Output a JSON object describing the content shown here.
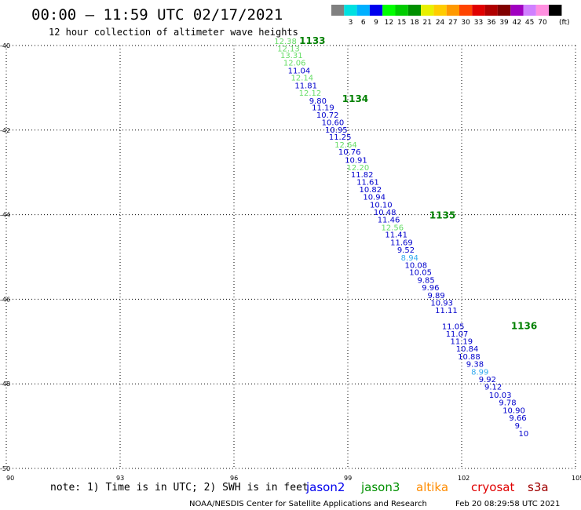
{
  "header": {
    "title": "00:00 – 11:59 UTC 02/17/2021",
    "subtitle": "12 hour collection of altimeter wave heights"
  },
  "legend": {
    "unit_label": "(ft)",
    "bins": [
      {
        "label": "",
        "color": "#808080"
      },
      {
        "label": "3",
        "color": "#00e0e0"
      },
      {
        "label": "6",
        "color": "#00b0ff"
      },
      {
        "label": "9",
        "color": "#0000ee"
      },
      {
        "label": "12",
        "color": "#00ff00"
      },
      {
        "label": "15",
        "color": "#00cc00"
      },
      {
        "label": "18",
        "color": "#009000"
      },
      {
        "label": "21",
        "color": "#e8f000"
      },
      {
        "label": "24",
        "color": "#ffcc00"
      },
      {
        "label": "27",
        "color": "#ff9900"
      },
      {
        "label": "30",
        "color": "#ff4400"
      },
      {
        "label": "33",
        "color": "#e00000"
      },
      {
        "label": "36",
        "color": "#b00000"
      },
      {
        "label": "39",
        "color": "#800000"
      },
      {
        "label": "42",
        "color": "#a000c0"
      },
      {
        "label": "45",
        "color": "#d080ff"
      },
      {
        "label": "70",
        "color": "#ff90e0"
      },
      {
        "label": "",
        "color": "#000000"
      }
    ]
  },
  "footer": {
    "note": "note: 1) Time is in UTC; 2) SWH is in feet",
    "satellites": [
      {
        "name": "jason2",
        "color": "#0000ee"
      },
      {
        "name": "jason3",
        "color": "#009000"
      },
      {
        "name": "altika",
        "color": "#ff8c00"
      },
      {
        "name": "cryosat",
        "color": "#e00000"
      },
      {
        "name": "s3a",
        "color": "#a00000"
      }
    ],
    "credit": "NOAA/NESDIS Center for Satellite Applications and Research",
    "timestamp": "Feb 20 08:29:58 UTC 2021"
  },
  "chart_data": {
    "type": "scatter",
    "x_ticks": [
      "90",
      "93",
      "96",
      "99",
      "102",
      "105"
    ],
    "y_ticks": [
      "-40",
      "-42",
      "-44",
      "-46",
      "-48",
      "-50"
    ],
    "xlim": [
      90,
      105
    ],
    "ylim": [
      -50,
      -40
    ],
    "grid": true,
    "colors": {
      "light": "#66dd66",
      "dark": "#0000cc",
      "cyan": "#33aaee",
      "orbit": "#008000"
    },
    "orbit_labels": [
      {
        "text": "1133",
        "x": 97.72,
        "y": -39.96
      },
      {
        "text": "1134",
        "x": 98.85,
        "y": -41.34
      },
      {
        "text": "1135",
        "x": 101.15,
        "y": -44.09
      },
      {
        "text": "1136",
        "x": 103.3,
        "y": -46.71
      }
    ],
    "points": [
      {
        "v": "12.38",
        "c": "light",
        "x": 97.06,
        "y": -39.96
      },
      {
        "v": "12.13",
        "c": "light",
        "x": 97.14,
        "y": -40.14
      },
      {
        "v": "13.31",
        "c": "light",
        "x": 97.22,
        "y": -40.3
      },
      {
        "v": "12.06",
        "c": "light",
        "x": 97.3,
        "y": -40.47
      },
      {
        "v": "11.04",
        "c": "dark",
        "x": 97.42,
        "y": -40.66
      },
      {
        "v": "12.14",
        "c": "light",
        "x": 97.5,
        "y": -40.83
      },
      {
        "v": "11.81",
        "c": "dark",
        "x": 97.6,
        "y": -41.01
      },
      {
        "v": "12.12",
        "c": "light",
        "x": 97.71,
        "y": -41.19
      },
      {
        "v": "9.80",
        "c": "dark",
        "x": 97.98,
        "y": -41.37
      },
      {
        "v": "11.19",
        "c": "dark",
        "x": 98.05,
        "y": -41.53
      },
      {
        "v": "10.72",
        "c": "dark",
        "x": 98.17,
        "y": -41.71
      },
      {
        "v": "10.60",
        "c": "dark",
        "x": 98.31,
        "y": -41.88
      },
      {
        "v": "10.95",
        "c": "dark",
        "x": 98.4,
        "y": -42.06
      },
      {
        "v": "11.25",
        "c": "dark",
        "x": 98.5,
        "y": -42.23
      },
      {
        "v": "12.64",
        "c": "light",
        "x": 98.65,
        "y": -42.41
      },
      {
        "v": "10.76",
        "c": "dark",
        "x": 98.75,
        "y": -42.58
      },
      {
        "v": "10.91",
        "c": "dark",
        "x": 98.92,
        "y": -42.77
      },
      {
        "v": "12.20",
        "c": "light",
        "x": 98.97,
        "y": -42.95
      },
      {
        "v": "11.82",
        "c": "dark",
        "x": 99.08,
        "y": -43.12
      },
      {
        "v": "11.61",
        "c": "dark",
        "x": 99.23,
        "y": -43.29
      },
      {
        "v": "10.82",
        "c": "dark",
        "x": 99.3,
        "y": -43.47
      },
      {
        "v": "10.94",
        "c": "dark",
        "x": 99.4,
        "y": -43.65
      },
      {
        "v": "10.10",
        "c": "dark",
        "x": 99.58,
        "y": -43.83
      },
      {
        "v": "10.48",
        "c": "dark",
        "x": 99.68,
        "y": -44.01
      },
      {
        "v": "11.46",
        "c": "dark",
        "x": 99.78,
        "y": -44.18
      },
      {
        "v": "12.56",
        "c": "light",
        "x": 99.88,
        "y": -44.37
      },
      {
        "v": "11.41",
        "c": "dark",
        "x": 99.98,
        "y": -44.54
      },
      {
        "v": "11.69",
        "c": "dark",
        "x": 100.12,
        "y": -44.72
      },
      {
        "v": "9.52",
        "c": "dark",
        "x": 100.3,
        "y": -44.9
      },
      {
        "v": "8.94",
        "c": "cyan",
        "x": 100.4,
        "y": -45.08
      },
      {
        "v": "10.08",
        "c": "dark",
        "x": 100.5,
        "y": -45.26
      },
      {
        "v": "10.05",
        "c": "dark",
        "x": 100.62,
        "y": -45.43
      },
      {
        "v": "9.85",
        "c": "dark",
        "x": 100.83,
        "y": -45.61
      },
      {
        "v": "9.96",
        "c": "dark",
        "x": 100.95,
        "y": -45.79
      },
      {
        "v": "9.89",
        "c": "dark",
        "x": 101.1,
        "y": -45.97
      },
      {
        "v": "10.93",
        "c": "dark",
        "x": 101.18,
        "y": -46.15
      },
      {
        "v": "11.11",
        "c": "dark",
        "x": 101.3,
        "y": -46.33
      },
      {
        "v": "11.05",
        "c": "dark",
        "x": 101.48,
        "y": -46.71
      },
      {
        "v": "11.07",
        "c": "dark",
        "x": 101.58,
        "y": -46.88
      },
      {
        "v": "11.19",
        "c": "dark",
        "x": 101.7,
        "y": -47.06
      },
      {
        "v": "10.84",
        "c": "dark",
        "x": 101.85,
        "y": -47.24
      },
      {
        "v": "10.88",
        "c": "dark",
        "x": 101.9,
        "y": -47.42
      },
      {
        "v": "9.38",
        "c": "dark",
        "x": 102.12,
        "y": -47.6
      },
      {
        "v": "8.99",
        "c": "cyan",
        "x": 102.25,
        "y": -47.78
      },
      {
        "v": "9.92",
        "c": "dark",
        "x": 102.45,
        "y": -47.96
      },
      {
        "v": "9.12",
        "c": "dark",
        "x": 102.6,
        "y": -48.14
      },
      {
        "v": "10.03",
        "c": "dark",
        "x": 102.72,
        "y": -48.33
      },
      {
        "v": "9.78",
        "c": "dark",
        "x": 102.98,
        "y": -48.51
      },
      {
        "v": "10.90",
        "c": "dark",
        "x": 103.08,
        "y": -48.69
      },
      {
        "v": "9.66",
        "c": "dark",
        "x": 103.25,
        "y": -48.87
      },
      {
        "v": "9.",
        "c": "dark",
        "x": 103.4,
        "y": -49.05
      },
      {
        "v": "10",
        "c": "dark",
        "x": 103.5,
        "y": -49.24
      }
    ]
  }
}
